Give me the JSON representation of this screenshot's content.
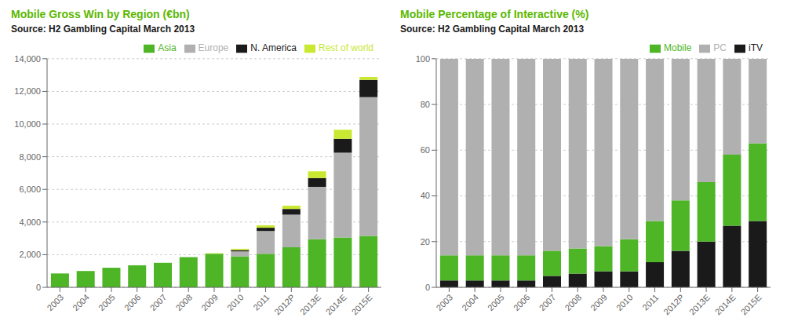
{
  "chart_data": [
    {
      "type": "bar",
      "stacked": true,
      "grid": true,
      "legend": "upper right",
      "title": "Mobile Gross Win by Region (€bn)",
      "subtitle": "Source: H2 Gambling Capital March 2013",
      "categories": [
        "2003",
        "2004",
        "2005",
        "2006",
        "2007",
        "2008",
        "2009",
        "2010",
        "2011",
        "2012P",
        "2013E",
        "2014E",
        "2015E"
      ],
      "series": [
        {
          "name": "Asia",
          "color": "#4db526",
          "values": [
            850,
            1000,
            1200,
            1350,
            1500,
            1850,
            2050,
            1900,
            2050,
            2450,
            2950,
            3050,
            3150
          ]
        },
        {
          "name": "Europe",
          "color": "#b0b0b0",
          "values": [
            0,
            0,
            0,
            0,
            0,
            0,
            0,
            300,
            1400,
            2000,
            3200,
            5200,
            8500
          ]
        },
        {
          "name": "N. America",
          "color": "#1a1a1a",
          "values": [
            0,
            0,
            0,
            0,
            0,
            0,
            0,
            80,
            200,
            350,
            550,
            850,
            1050
          ]
        },
        {
          "name": "Rest of world",
          "color": "#c8e832",
          "values": [
            0,
            0,
            0,
            0,
            0,
            0,
            40,
            80,
            150,
            200,
            400,
            550,
            180
          ]
        }
      ],
      "ylim": [
        0,
        14000
      ],
      "yticks": [
        0,
        {
          "value": 2000,
          "label": "2,000"
        },
        {
          "value": 4000,
          "label": "4,000"
        },
        {
          "value": 6000,
          "label": "6,000"
        },
        {
          "value": 8000,
          "label": "8,000"
        },
        {
          "value": 10000,
          "label": "10,000"
        },
        {
          "value": 12000,
          "label": "12,000"
        },
        {
          "value": 14000,
          "label": "14,000"
        }
      ]
    },
    {
      "type": "bar",
      "stacked": true,
      "grid": true,
      "legend": "upper right",
      "title": "Mobile Percentage of Interactive (%)",
      "subtitle": "Source: H2 Gambling Capital March 2013",
      "categories": [
        "2003",
        "2004",
        "2005",
        "2006",
        "2007",
        "2008",
        "2009",
        "2010",
        "2011",
        "2012P",
        "2013E",
        "2014E",
        "2015E"
      ],
      "series": [
        {
          "name": "iTV",
          "color": "#1a1a1a",
          "values": [
            3,
            3,
            3,
            3,
            5,
            6,
            7,
            7,
            11,
            16,
            20,
            27,
            29
          ]
        },
        {
          "name": "Mobile",
          "color": "#4db526",
          "values": [
            11,
            11,
            11,
            11,
            11,
            11,
            11,
            14,
            18,
            22,
            26,
            31,
            34
          ]
        },
        {
          "name": "PC",
          "color": "#b0b0b0",
          "values": [
            86,
            86,
            86,
            86,
            84,
            83,
            82,
            79,
            71,
            62,
            54,
            42,
            37
          ]
        }
      ],
      "ylim": [
        0,
        100
      ],
      "yticks": [
        0,
        20,
        40,
        60,
        80,
        100
      ]
    }
  ]
}
